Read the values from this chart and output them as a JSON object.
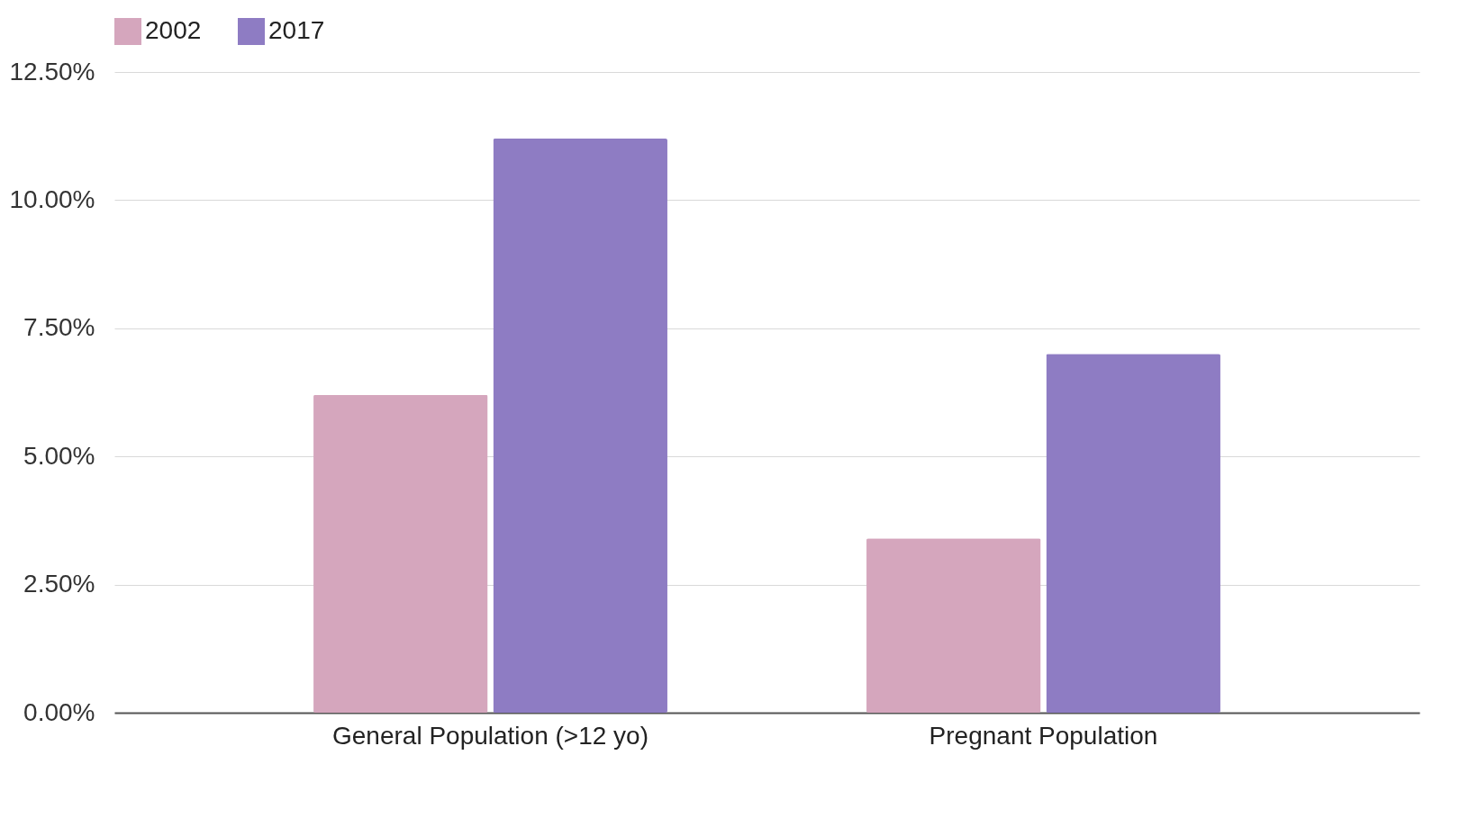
{
  "chart_data": {
    "type": "bar",
    "categories": [
      "General Population (>12 yo)",
      "Pregnant Population"
    ],
    "series": [
      {
        "name": "2002",
        "color": "#d5a6bd",
        "values": [
          6.2,
          3.4
        ]
      },
      {
        "name": "2017",
        "color": "#8e7cc3",
        "values": [
          11.2,
          7.0
        ]
      }
    ],
    "ylim": [
      0,
      12.5
    ],
    "yticks": [
      {
        "value": 0,
        "label": "0.00%"
      },
      {
        "value": 2.5,
        "label": "2.50%"
      },
      {
        "value": 5,
        "label": "5.00%"
      },
      {
        "value": 7.5,
        "label": "7.50%"
      },
      {
        "value": 10,
        "label": "10.00%"
      },
      {
        "value": 12.5,
        "label": "12.50%"
      }
    ],
    "grid": "y",
    "legend": "top"
  }
}
